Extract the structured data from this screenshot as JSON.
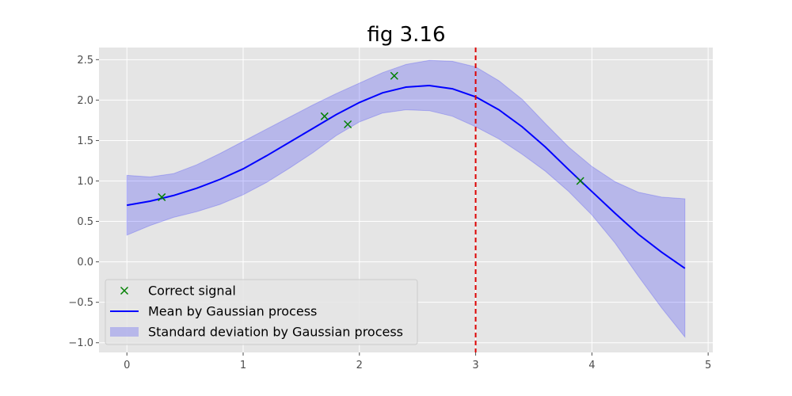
{
  "chart_data": {
    "type": "line",
    "title": "fig 3.16",
    "xlabel": "",
    "ylabel": "",
    "xlim": [
      -0.24,
      5.04
    ],
    "ylim": [
      -1.12,
      2.65
    ],
    "xticks": [
      0,
      1,
      2,
      3,
      4,
      5
    ],
    "yticks": [
      -1.0,
      -0.5,
      0.0,
      0.5,
      1.0,
      1.5,
      2.0,
      2.5
    ],
    "xtick_labels": [
      "0",
      "1",
      "2",
      "3",
      "4",
      "5"
    ],
    "ytick_labels": [
      "−1.0",
      "−0.5",
      "0.0",
      "0.5",
      "1.0",
      "1.5",
      "2.0",
      "2.5"
    ],
    "grid": true,
    "legend_position": "lower-left",
    "colors": {
      "axes_background": "#e5e5e5",
      "grid": "#ffffff",
      "mean_line": "#0000ff",
      "band_fill": "#0000ff",
      "band_opacity": 0.2,
      "points": "#008000",
      "vline": "#dd0000"
    },
    "series": [
      {
        "name": "Correct signal",
        "kind": "scatter",
        "marker": "x",
        "x": [
          0.3,
          1.7,
          1.9,
          2.3,
          3.9
        ],
        "y": [
          0.8,
          1.8,
          1.7,
          2.3,
          1.0
        ]
      },
      {
        "name": "Mean by Gaussian process",
        "kind": "line",
        "x": [
          0.0,
          0.2,
          0.4,
          0.6,
          0.8,
          1.0,
          1.2,
          1.4,
          1.6,
          1.8,
          2.0,
          2.2,
          2.4,
          2.6,
          2.8,
          3.0,
          3.2,
          3.4,
          3.6,
          3.8,
          4.0,
          4.2,
          4.4,
          4.6,
          4.8
        ],
        "y": [
          0.7,
          0.75,
          0.82,
          0.91,
          1.02,
          1.15,
          1.31,
          1.48,
          1.65,
          1.82,
          1.97,
          2.09,
          2.16,
          2.18,
          2.14,
          2.04,
          1.88,
          1.67,
          1.42,
          1.14,
          0.87,
          0.6,
          0.34,
          0.12,
          -0.08
        ]
      },
      {
        "name": "Standard deviation by Gaussian process",
        "kind": "band",
        "x": [
          0.0,
          0.2,
          0.4,
          0.6,
          0.8,
          1.0,
          1.2,
          1.4,
          1.6,
          1.8,
          2.0,
          2.2,
          2.4,
          2.6,
          2.8,
          3.0,
          3.2,
          3.4,
          3.6,
          3.8,
          4.0,
          4.2,
          4.4,
          4.6,
          4.8
        ],
        "upper": [
          1.07,
          1.05,
          1.09,
          1.2,
          1.34,
          1.49,
          1.64,
          1.79,
          1.94,
          2.08,
          2.21,
          2.34,
          2.44,
          2.49,
          2.48,
          2.41,
          2.24,
          2.01,
          1.71,
          1.42,
          1.18,
          0.99,
          0.86,
          0.8,
          0.78
        ],
        "lower": [
          0.33,
          0.45,
          0.55,
          0.62,
          0.71,
          0.83,
          0.98,
          1.16,
          1.35,
          1.56,
          1.73,
          1.84,
          1.88,
          1.87,
          1.8,
          1.67,
          1.52,
          1.33,
          1.12,
          0.87,
          0.58,
          0.23,
          -0.18,
          -0.57,
          -0.93
        ]
      }
    ],
    "vline": {
      "x": 3,
      "style": "dashed"
    }
  }
}
